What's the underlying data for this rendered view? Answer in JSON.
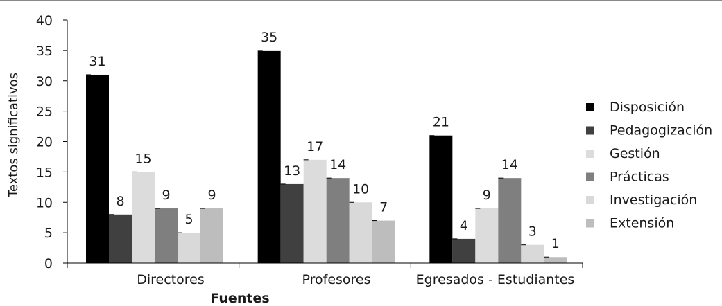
{
  "chart_data": {
    "type": "bar",
    "title": "",
    "xlabel": "Fuentes",
    "ylabel": "Textos significativos",
    "ylim": [
      0,
      40
    ],
    "yticks": [
      0,
      5,
      10,
      15,
      20,
      25,
      30,
      35,
      40
    ],
    "categories": [
      "Directores",
      "Profesores",
      "Egresados - Estudiantes"
    ],
    "series": [
      {
        "name": "Disposición",
        "color": "#000000",
        "values": [
          31,
          35,
          21
        ]
      },
      {
        "name": "Pedagogización",
        "color": "#404040",
        "values": [
          8,
          13,
          4
        ]
      },
      {
        "name": "Gestión",
        "color": "#dcdcdc",
        "values": [
          15,
          17,
          9
        ]
      },
      {
        "name": "Prácticas",
        "color": "#7f7f7f",
        "values": [
          9,
          14,
          14
        ]
      },
      {
        "name": "Investigación",
        "color": "#d9d9d9",
        "values": [
          5,
          10,
          3
        ]
      },
      {
        "name": "Extensión",
        "color": "#bdbdbd",
        "values": [
          9,
          7,
          1
        ]
      }
    ],
    "data_labels": true,
    "grid": false,
    "legend_position": "right"
  }
}
